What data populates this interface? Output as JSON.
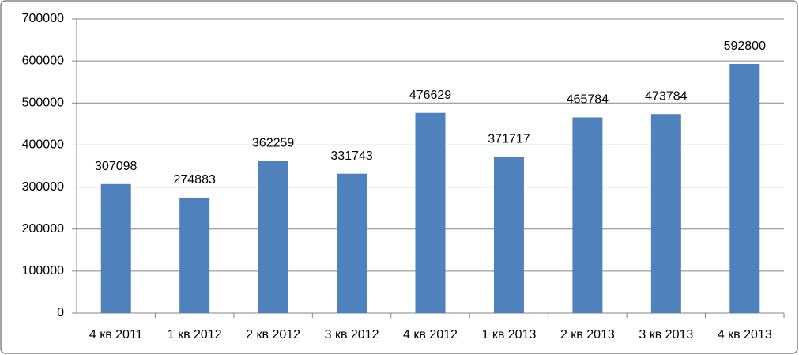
{
  "chart_data": {
    "type": "bar",
    "categories": [
      "4 кв 2011",
      "1 кв 2012",
      "2 кв 2012",
      "3 кв 2012",
      "4 кв 2012",
      "1 кв 2013",
      "2 кв 2013",
      "3 кв 2013",
      "4 кв 2013"
    ],
    "values": [
      307098,
      274883,
      362259,
      331743,
      476629,
      371717,
      465784,
      473784,
      592800
    ],
    "color": "#4f81bd",
    "ylim": [
      0,
      700000
    ],
    "yticks": [
      0,
      100000,
      200000,
      300000,
      400000,
      500000,
      600000,
      700000
    ],
    "grid": true
  }
}
